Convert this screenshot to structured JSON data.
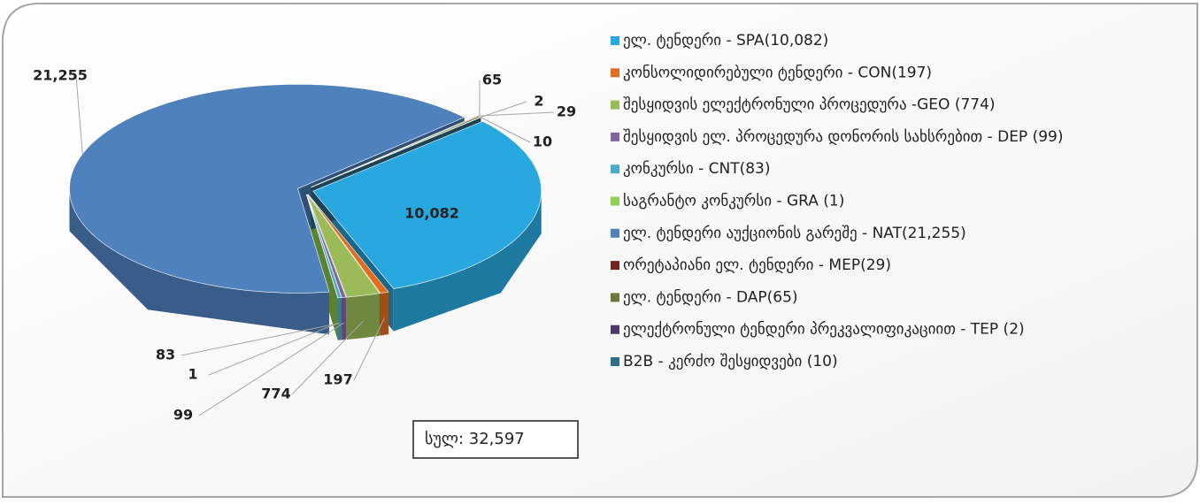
{
  "chart_data": {
    "type": "pie3d",
    "categories": [
      "ელ. ტენდერი - SPA(10,082)",
      "კონსოლიდირებული ტენდერი - CON(197)",
      "შესყიდვის ელექტრონული პროცედურა -GEO (774)",
      "შესყიდვის ელ. პროცედურა დონორის სახსრებით - DEP (99)",
      "კონკურსი - CNT(83)",
      "საგრანტო კონკურსი - GRA (1)",
      "ელ. ტენდერი აუქციონის გარეშე - NAT(21,255)",
      "ორეტაპიანი ელ. ტენდერი - MEP(29)",
      "ელ. ტენდერი - DAP(65)",
      "ელექტრონული ტენდერი პრეკვალიფიკაციით - TEP (2)",
      "B2B - კერძო შესყიდვები (10)"
    ],
    "values": [
      10082,
      197,
      774,
      99,
      83,
      1,
      21255,
      29,
      65,
      2,
      10
    ],
    "value_labels": [
      "10,082",
      "197",
      "774",
      "99",
      "83",
      "1",
      "21,255",
      "29",
      "65",
      "2",
      "10"
    ],
    "colors": [
      "#29a8e0",
      "#e36c1e",
      "#9bbb59",
      "#8064a2",
      "#4bacc6",
      "#92d050",
      "#4f81bd",
      "#772222",
      "#6b7a3a",
      "#4a3b6a",
      "#2f6e8a"
    ],
    "annotation": "სულ: 32,597",
    "legend": "right"
  }
}
